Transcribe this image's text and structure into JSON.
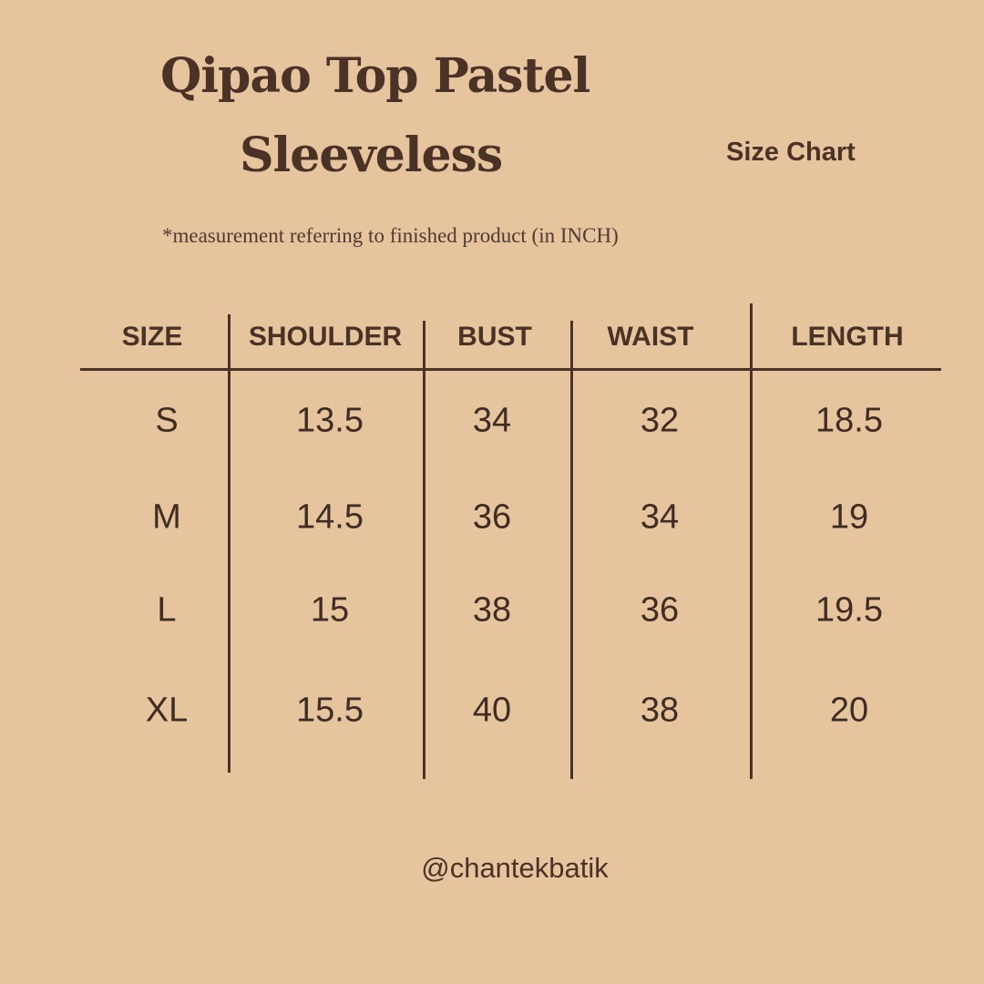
{
  "title_line1": "Qipao Top Pastel",
  "title_line2": "Sleeveless",
  "subtitle": "Size Chart",
  "note": "*measurement referring to finished product (in INCH)",
  "table": {
    "headers": [
      "SIZE",
      "SHOULDER",
      "BUST",
      "WAIST",
      "LENGTH"
    ],
    "rows": [
      [
        "S",
        "13.5",
        "34",
        "32",
        "18.5"
      ],
      [
        "M",
        "14.5",
        "36",
        "34",
        "19"
      ],
      [
        "L",
        "15",
        "38",
        "36",
        "19.5"
      ],
      [
        "XL",
        "15.5",
        "40",
        "38",
        "20"
      ]
    ]
  },
  "handle": "@chantekbatik",
  "colors": {
    "background": "#E6C59E",
    "text": "#4A3226"
  }
}
